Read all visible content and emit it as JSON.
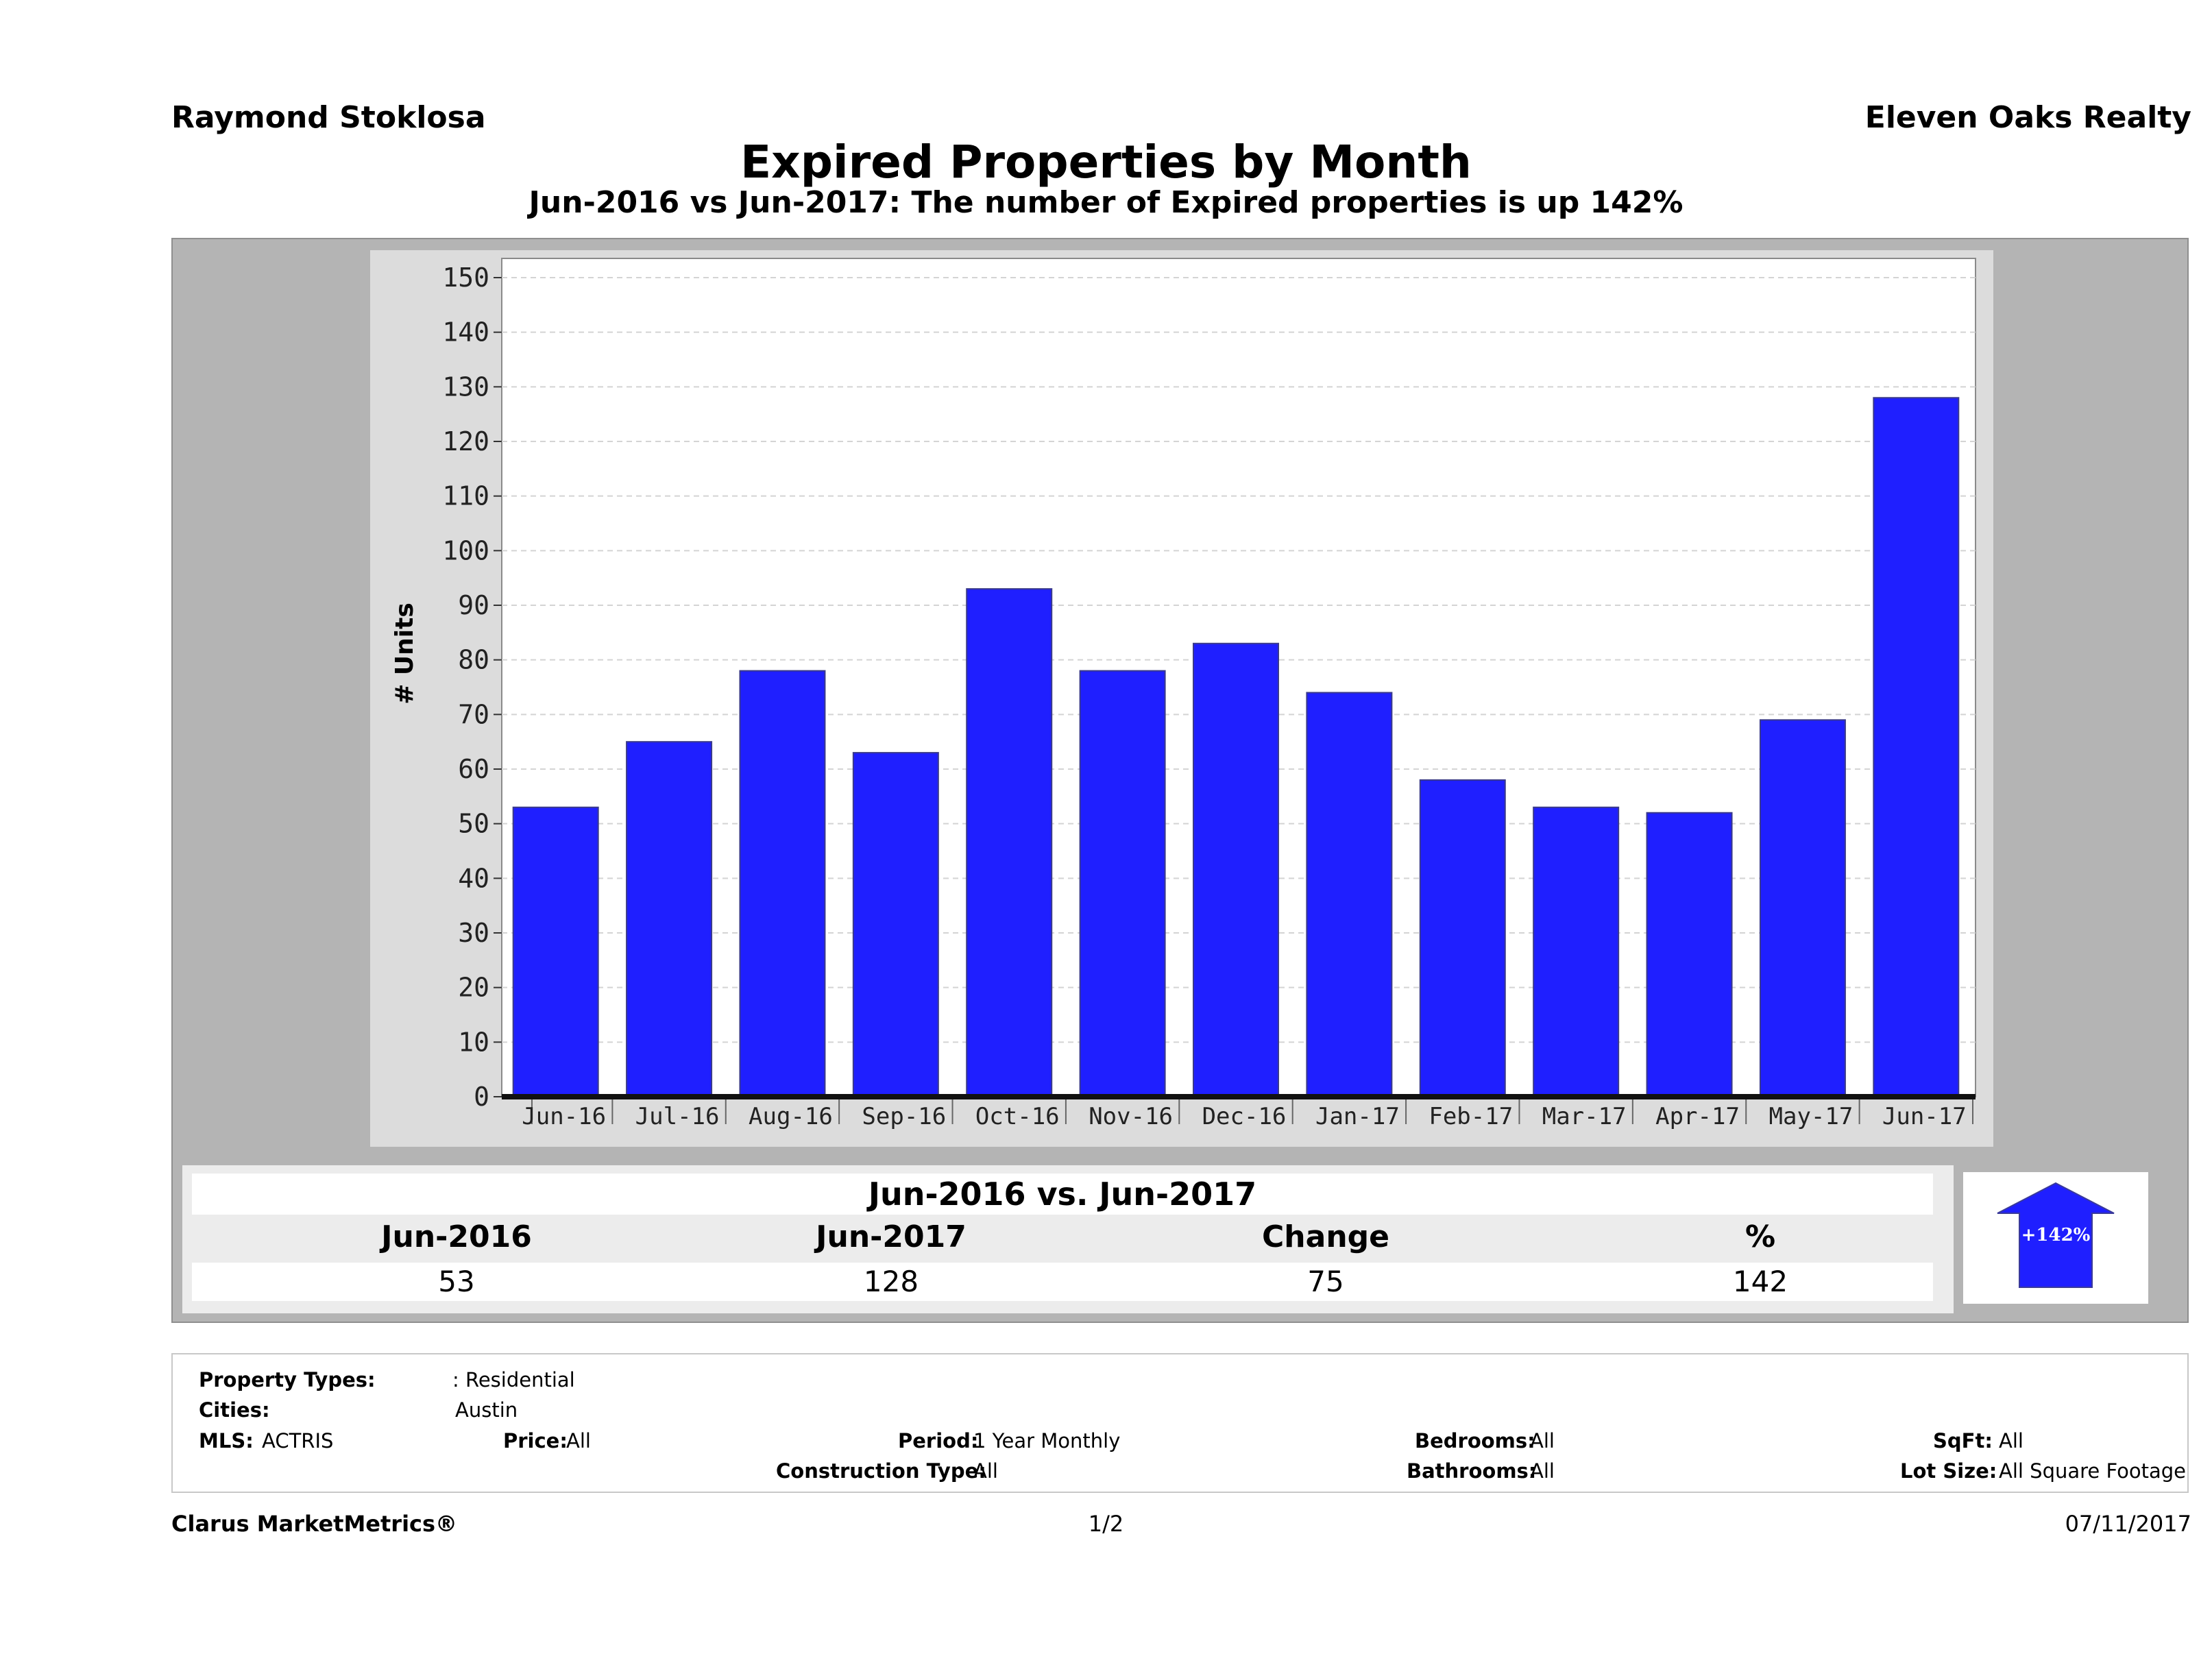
{
  "header": {
    "agent": "Raymond Stoklosa",
    "company": "Eleven Oaks Realty"
  },
  "chart_data": {
    "type": "bar",
    "title": "Expired Properties by Month",
    "subtitle": "Jun-2016 vs Jun-2017: The number of Expired  properties is up 142%",
    "ylabel": "# Units",
    "xlabel": "",
    "ylim": [
      0,
      150
    ],
    "yticks": [
      0,
      10,
      20,
      30,
      40,
      50,
      60,
      70,
      80,
      90,
      100,
      110,
      120,
      130,
      140,
      150
    ],
    "categories": [
      "Jun-16",
      "Jul-16",
      "Aug-16",
      "Sep-16",
      "Oct-16",
      "Nov-16",
      "Dec-16",
      "Jan-17",
      "Feb-17",
      "Mar-17",
      "Apr-17",
      "May-17",
      "Jun-17"
    ],
    "values": [
      53,
      65,
      78,
      63,
      93,
      78,
      83,
      74,
      58,
      53,
      52,
      69,
      128
    ],
    "bar_color": "#1f1fff",
    "grid": true
  },
  "summary": {
    "title": "Jun-2016 vs. Jun-2017",
    "headers": [
      "Jun-2016",
      "Jun-2017",
      "Change",
      "%"
    ],
    "values": [
      "53",
      "128",
      "75",
      "142"
    ],
    "badge": "+142%",
    "badge_color": "#1f1fff"
  },
  "filters": {
    "property_types_label": "Property Types:",
    "property_types_value": ": Residential",
    "cities_label": "Cities:",
    "cities_value": "Austin",
    "mls_label": "MLS:",
    "mls_value": "ACTRIS",
    "price_label": "Price:",
    "price_value": "All",
    "period_label": "Period:",
    "period_value": "1 Year Monthly",
    "construction_label": "Construction Type:",
    "construction_value": "All",
    "bedrooms_label": "Bedrooms:",
    "bedrooms_value": "All",
    "bathrooms_label": "Bathrooms:",
    "bathrooms_value": "All",
    "sqft_label": "SqFt:",
    "sqft_value": "All",
    "lotsize_label": "Lot Size:",
    "lotsize_value": "All Square Footage"
  },
  "footer": {
    "brand": "Clarus MarketMetrics®",
    "page": "1/2",
    "date": "07/11/2017"
  }
}
